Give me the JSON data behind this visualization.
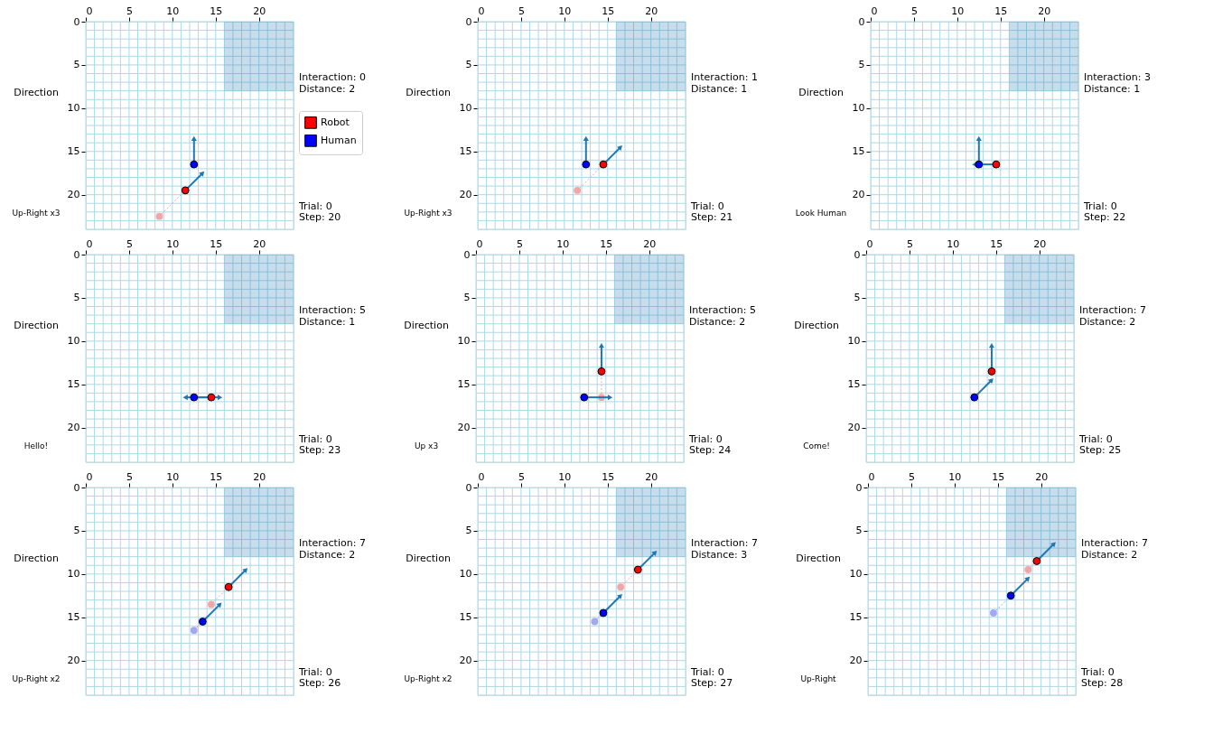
{
  "chart_data": [
    {
      "type": "scatter",
      "xlim": [
        0,
        24
      ],
      "ylim": [
        24,
        0
      ],
      "xticks": [
        0,
        5,
        10,
        15,
        20
      ],
      "yticks": [
        0,
        5,
        10,
        15,
        20
      ],
      "grid": true,
      "legend": "right",
      "annotations": [
        "Interaction: 0",
        "Distance: 2",
        "Trial: 0",
        "Step: 20",
        "Direction",
        "Up-Right x3"
      ],
      "series": [
        {
          "type": "area",
          "color": "#1f77b4",
          "x": [
            16,
            24
          ],
          "values": [
            8,
            8
          ]
        },
        {
          "type": "line",
          "line_style": "dotted",
          "color": "#f4a6a6",
          "x": [
            8.5,
            11.5
          ],
          "values": [
            22.5,
            19.5
          ]
        },
        {
          "marker": "circle",
          "color": "#f4a6a6",
          "x": [
            8.5
          ],
          "values": [
            22.5
          ]
        },
        {
          "type": "line",
          "marker": "triangle",
          "color": "#1f77b4",
          "x": [
            12.5,
            12.5
          ],
          "values": [
            16.5,
            13.5
          ]
        },
        {
          "type": "line",
          "marker": "triangle",
          "color": "#1f77b4",
          "x": [
            11.5,
            13.5
          ],
          "values": [
            19.5,
            17.5
          ]
        },
        {
          "name": "Robot",
          "marker": "circle",
          "color": "#ff0000",
          "x": [
            11.5
          ],
          "values": [
            19.5
          ]
        },
        {
          "name": "Human",
          "marker": "circle",
          "color": "#0000ff",
          "x": [
            12.5
          ],
          "values": [
            16.5
          ]
        }
      ]
    },
    {
      "type": "scatter",
      "xlim": [
        0,
        24
      ],
      "ylim": [
        24,
        0
      ],
      "xticks": [
        0,
        5,
        10,
        15,
        20
      ],
      "yticks": [
        0,
        5,
        10,
        15,
        20
      ],
      "grid": true,
      "legend": "right",
      "annotations": [
        "Interaction: 1",
        "Distance: 1",
        "Trial: 0",
        "Step: 21",
        "Direction",
        "Up-Right x3"
      ],
      "series": [
        {
          "type": "area",
          "color": "#1f77b4",
          "x": [
            16,
            24
          ],
          "values": [
            8,
            8
          ]
        },
        {
          "type": "line",
          "line_style": "dotted",
          "color": "#f4a6a6",
          "x": [
            11.5,
            14.5
          ],
          "values": [
            19.5,
            16.5
          ]
        },
        {
          "marker": "circle",
          "color": "#f4a6a6",
          "x": [
            11.5
          ],
          "values": [
            19.5
          ]
        },
        {
          "type": "line",
          "marker": "triangle",
          "color": "#1f77b4",
          "x": [
            12.5,
            12.5
          ],
          "values": [
            16.5,
            13.5
          ]
        },
        {
          "type": "line",
          "marker": "triangle",
          "color": "#1f77b4",
          "x": [
            14.5,
            16.5
          ],
          "values": [
            16.5,
            14.5
          ]
        },
        {
          "name": "Robot",
          "marker": "circle",
          "color": "#ff0000",
          "x": [
            14.5
          ],
          "values": [
            16.5
          ]
        },
        {
          "name": "Human",
          "marker": "circle",
          "color": "#0000ff",
          "x": [
            12.5
          ],
          "values": [
            16.5
          ]
        }
      ]
    },
    {
      "type": "scatter",
      "xlim": [
        0,
        24
      ],
      "ylim": [
        24,
        0
      ],
      "xticks": [
        0,
        5,
        10,
        15,
        20
      ],
      "yticks": [
        0,
        5,
        10,
        15,
        20
      ],
      "grid": true,
      "legend": "right",
      "annotations": [
        "Interaction: 3",
        "Distance: 1",
        "Trial: 0",
        "Step: 22",
        "Direction",
        "Look Human"
      ],
      "series": [
        {
          "type": "area",
          "color": "#1f77b4",
          "x": [
            16,
            24
          ],
          "values": [
            8,
            8
          ]
        },
        {
          "type": "line",
          "marker": "triangle",
          "color": "#1f77b4",
          "x": [
            12.5,
            12.5
          ],
          "values": [
            16.5,
            13.5
          ]
        },
        {
          "type": "line",
          "marker": "triangle",
          "color": "#1f77b4",
          "x": [
            14.5,
            12
          ],
          "values": [
            16.5,
            16.5
          ]
        },
        {
          "name": "Robot",
          "marker": "circle",
          "color": "#ff0000",
          "x": [
            14.5
          ],
          "values": [
            16.5
          ]
        },
        {
          "name": "Human",
          "marker": "circle",
          "color": "#0000ff",
          "x": [
            12.5
          ],
          "values": [
            16.5
          ]
        }
      ]
    },
    {
      "type": "scatter",
      "xlim": [
        0,
        24
      ],
      "ylim": [
        24,
        0
      ],
      "xticks": [
        0,
        5,
        10,
        15,
        20
      ],
      "yticks": [
        0,
        5,
        10,
        15,
        20
      ],
      "grid": true,
      "legend": "right",
      "annotations": [
        "Interaction: 5",
        "Distance: 1",
        "Trial: 0",
        "Step: 23",
        "Direction",
        "Hello!"
      ],
      "series": [
        {
          "type": "area",
          "color": "#1f77b4",
          "x": [
            16,
            24
          ],
          "values": [
            8,
            8
          ]
        },
        {
          "type": "line",
          "marker": "triangle",
          "color": "#1f77b4",
          "x": [
            12.5,
            15.5
          ],
          "values": [
            16.5,
            16.5
          ]
        },
        {
          "type": "line",
          "marker": "triangle",
          "color": "#1f77b4",
          "x": [
            14.5,
            11.5
          ],
          "values": [
            16.5,
            16.5
          ]
        },
        {
          "name": "Robot",
          "marker": "circle",
          "color": "#ff0000",
          "x": [
            14.5
          ],
          "values": [
            16.5
          ]
        },
        {
          "name": "Human",
          "marker": "circle",
          "color": "#0000ff",
          "x": [
            12.5
          ],
          "values": [
            16.5
          ]
        }
      ]
    },
    {
      "type": "scatter",
      "xlim": [
        0,
        24
      ],
      "ylim": [
        24,
        0
      ],
      "xticks": [
        0,
        5,
        10,
        15,
        20
      ],
      "yticks": [
        0,
        5,
        10,
        15,
        20
      ],
      "grid": true,
      "legend": "right",
      "annotations": [
        "Interaction: 5",
        "Distance: 2",
        "Trial: 0",
        "Step: 24",
        "Direction",
        "Up x3"
      ],
      "series": [
        {
          "type": "area",
          "color": "#1f77b4",
          "x": [
            16,
            24
          ],
          "values": [
            8,
            8
          ]
        },
        {
          "type": "line",
          "line_style": "dotted",
          "color": "#f4a6a6",
          "x": [
            14.5,
            14.5
          ],
          "values": [
            16.5,
            13.5
          ]
        },
        {
          "marker": "circle",
          "color": "#f4a6a6",
          "x": [
            14.5
          ],
          "values": [
            16.5
          ]
        },
        {
          "type": "line",
          "marker": "triangle",
          "color": "#1f77b4",
          "x": [
            14.5,
            14.5
          ],
          "values": [
            13.5,
            10.5
          ]
        },
        {
          "type": "line",
          "marker": "triangle",
          "color": "#1f77b4",
          "x": [
            12.5,
            15.5
          ],
          "values": [
            16.5,
            16.5
          ]
        },
        {
          "name": "Robot",
          "marker": "circle",
          "color": "#ff0000",
          "x": [
            14.5
          ],
          "values": [
            13.5
          ]
        },
        {
          "name": "Human",
          "marker": "circle",
          "color": "#0000ff",
          "x": [
            12.5
          ],
          "values": [
            16.5
          ]
        }
      ]
    },
    {
      "type": "scatter",
      "xlim": [
        0,
        24
      ],
      "ylim": [
        24,
        0
      ],
      "xticks": [
        0,
        5,
        10,
        15,
        20
      ],
      "yticks": [
        0,
        5,
        10,
        15,
        20
      ],
      "grid": true,
      "legend": "right",
      "annotations": [
        "Interaction: 7",
        "Distance: 2",
        "Trial: 0",
        "Step: 25",
        "Direction",
        "Come!"
      ],
      "series": [
        {
          "type": "area",
          "color": "#1f77b4",
          "x": [
            16,
            24
          ],
          "values": [
            8,
            8
          ]
        },
        {
          "type": "line",
          "marker": "triangle",
          "color": "#1f77b4",
          "x": [
            14.5,
            14.5
          ],
          "values": [
            13.5,
            10.5
          ]
        },
        {
          "type": "line",
          "marker": "triangle",
          "color": "#1f77b4",
          "x": [
            12.5,
            14.5
          ],
          "values": [
            16.5,
            14.5
          ]
        },
        {
          "name": "Robot",
          "marker": "circle",
          "color": "#ff0000",
          "x": [
            14.5
          ],
          "values": [
            13.5
          ]
        },
        {
          "name": "Human",
          "marker": "circle",
          "color": "#0000ff",
          "x": [
            12.5
          ],
          "values": [
            16.5
          ]
        }
      ]
    },
    {
      "type": "scatter",
      "xlim": [
        0,
        24
      ],
      "ylim": [
        24,
        0
      ],
      "xticks": [
        0,
        5,
        10,
        15,
        20
      ],
      "yticks": [
        0,
        5,
        10,
        15,
        20
      ],
      "grid": true,
      "legend": "right",
      "annotations": [
        "Interaction: 7",
        "Distance: 2",
        "Trial: 0",
        "Step: 26",
        "Direction",
        "Up-Right x2"
      ],
      "series": [
        {
          "type": "area",
          "color": "#1f77b4",
          "x": [
            16,
            24
          ],
          "values": [
            8,
            8
          ]
        },
        {
          "type": "line",
          "line_style": "dotted",
          "color": "#f4a6a6",
          "x": [
            14.5,
            16.5
          ],
          "values": [
            13.5,
            11.5
          ]
        },
        {
          "marker": "circle",
          "color": "#f4a6a6",
          "x": [
            14.5
          ],
          "values": [
            13.5
          ]
        },
        {
          "type": "line",
          "line_style": "dotted",
          "color": "#a6a6f4",
          "x": [
            12.5,
            13.5
          ],
          "values": [
            16.5,
            15.5
          ]
        },
        {
          "marker": "circle",
          "color": "#a6a6f4",
          "x": [
            12.5
          ],
          "values": [
            16.5
          ]
        },
        {
          "type": "line",
          "marker": "triangle",
          "color": "#1f77b4",
          "x": [
            16.5,
            18.5
          ],
          "values": [
            11.5,
            9.5
          ]
        },
        {
          "type": "line",
          "marker": "triangle",
          "color": "#1f77b4",
          "x": [
            13.5,
            15.5
          ],
          "values": [
            15.5,
            13.5
          ]
        },
        {
          "name": "Robot",
          "marker": "circle",
          "color": "#ff0000",
          "x": [
            16.5
          ],
          "values": [
            11.5
          ]
        },
        {
          "name": "Human",
          "marker": "circle",
          "color": "#0000ff",
          "x": [
            13.5
          ],
          "values": [
            15.5
          ]
        }
      ]
    },
    {
      "type": "scatter",
      "xlim": [
        0,
        24
      ],
      "ylim": [
        24,
        0
      ],
      "xticks": [
        0,
        5,
        10,
        15,
        20
      ],
      "yticks": [
        0,
        5,
        10,
        15,
        20
      ],
      "grid": true,
      "legend": "right",
      "annotations": [
        "Interaction: 7",
        "Distance: 3",
        "Trial: 0",
        "Step: 27",
        "Direction",
        "Up-Right x2"
      ],
      "series": [
        {
          "type": "area",
          "color": "#1f77b4",
          "x": [
            16,
            24
          ],
          "values": [
            8,
            8
          ]
        },
        {
          "type": "line",
          "line_style": "dotted",
          "color": "#f4a6a6",
          "x": [
            16.5,
            18.5
          ],
          "values": [
            11.5,
            9.5
          ]
        },
        {
          "marker": "circle",
          "color": "#f4a6a6",
          "x": [
            16.5
          ],
          "values": [
            11.5
          ]
        },
        {
          "type": "line",
          "line_style": "dotted",
          "color": "#a6a6f4",
          "x": [
            13.5,
            14.5
          ],
          "values": [
            15.5,
            14.5
          ]
        },
        {
          "marker": "circle",
          "color": "#a6a6f4",
          "x": [
            13.5
          ],
          "values": [
            15.5
          ]
        },
        {
          "type": "line",
          "marker": "triangle",
          "color": "#1f77b4",
          "x": [
            18.5,
            20.5
          ],
          "values": [
            9.5,
            7.5
          ]
        },
        {
          "type": "line",
          "marker": "triangle",
          "color": "#1f77b4",
          "x": [
            14.5,
            16.5
          ],
          "values": [
            14.5,
            12.5
          ]
        },
        {
          "name": "Robot",
          "marker": "circle",
          "color": "#ff0000",
          "x": [
            18.5
          ],
          "values": [
            9.5
          ]
        },
        {
          "name": "Human",
          "marker": "circle",
          "color": "#0000ff",
          "x": [
            14.5
          ],
          "values": [
            14.5
          ]
        }
      ]
    },
    {
      "type": "scatter",
      "xlim": [
        0,
        24
      ],
      "ylim": [
        24,
        0
      ],
      "xticks": [
        0,
        5,
        10,
        15,
        20
      ],
      "yticks": [
        0,
        5,
        10,
        15,
        20
      ],
      "grid": true,
      "legend": "right",
      "annotations": [
        "Interaction: 7",
        "Distance: 2",
        "Trial: 0",
        "Step: 28",
        "Direction",
        "Up-Right"
      ],
      "series": [
        {
          "type": "area",
          "color": "#1f77b4",
          "x": [
            16,
            24
          ],
          "values": [
            8,
            8
          ]
        },
        {
          "type": "line",
          "line_style": "dotted",
          "color": "#f4a6a6",
          "x": [
            18.5,
            19.5
          ],
          "values": [
            9.5,
            8.5
          ]
        },
        {
          "marker": "circle",
          "color": "#f4a6a6",
          "x": [
            18.5
          ],
          "values": [
            9.5
          ]
        },
        {
          "type": "line",
          "line_style": "dotted",
          "color": "#a6a6f4",
          "x": [
            14.5,
            16.5
          ],
          "values": [
            14.5,
            12.5
          ]
        },
        {
          "marker": "circle",
          "color": "#a6a6f4",
          "x": [
            14.5
          ],
          "values": [
            14.5
          ]
        },
        {
          "type": "line",
          "marker": "triangle",
          "color": "#1f77b4",
          "x": [
            19.5,
            21.5
          ],
          "values": [
            8.5,
            6.5
          ]
        },
        {
          "type": "line",
          "marker": "triangle",
          "color": "#1f77b4",
          "x": [
            16.5,
            18.5
          ],
          "values": [
            12.5,
            10.5
          ]
        },
        {
          "name": "Robot",
          "marker": "circle",
          "color": "#ff0000",
          "x": [
            19.5
          ],
          "values": [
            8.5
          ]
        },
        {
          "name": "Human",
          "marker": "circle",
          "color": "#0000ff",
          "x": [
            16.5
          ],
          "values": [
            12.5
          ]
        }
      ]
    }
  ]
}
